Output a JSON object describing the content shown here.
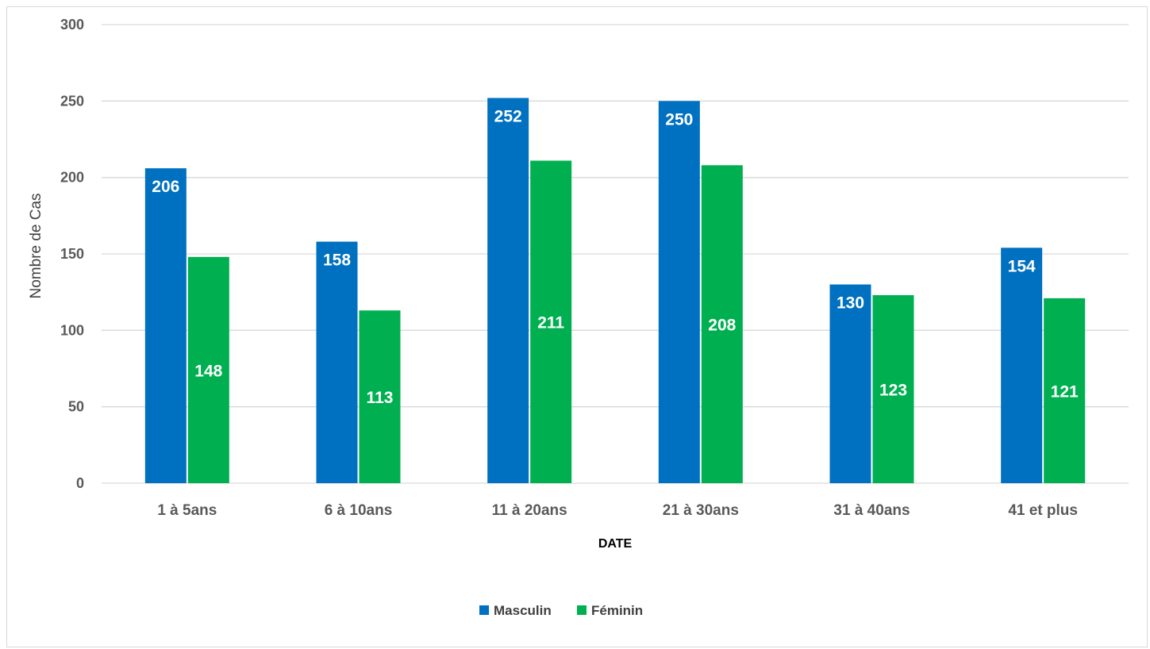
{
  "chart_data": {
    "type": "bar",
    "categories": [
      "1 à 5ans",
      "6 à 10ans",
      "11 à 20ans",
      "21 à 30ans",
      "31 à 40ans",
      "41 et plus"
    ],
    "series": [
      {
        "name": "Masculin",
        "color": "#0070c0",
        "values": [
          206,
          158,
          252,
          250,
          130,
          154
        ]
      },
      {
        "name": "Féminin",
        "color": "#00b050",
        "values": [
          148,
          113,
          211,
          208,
          123,
          121
        ]
      }
    ],
    "title": "",
    "xlabel": "DATE",
    "ylabel": "Nombre de Cas",
    "ylim": [
      0,
      300
    ],
    "yticks": [
      0,
      50,
      100,
      150,
      200,
      250,
      300
    ],
    "grid": true,
    "legend_position": "bottom",
    "data_labels": true
  }
}
